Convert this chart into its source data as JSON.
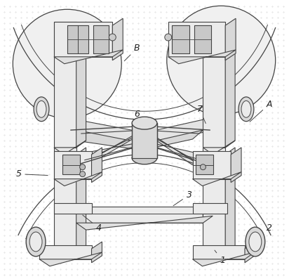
{
  "bg_color": "#ffffff",
  "line_color": "#444444",
  "label_color": "#222222",
  "figure_width": 4.12,
  "figure_height": 3.97,
  "dpi": 100,
  "dot_color": "#cccccc",
  "structure_gray": "#d8d8d8",
  "structure_light": "#ebebeb",
  "circle_fill": "#f0f0f0"
}
